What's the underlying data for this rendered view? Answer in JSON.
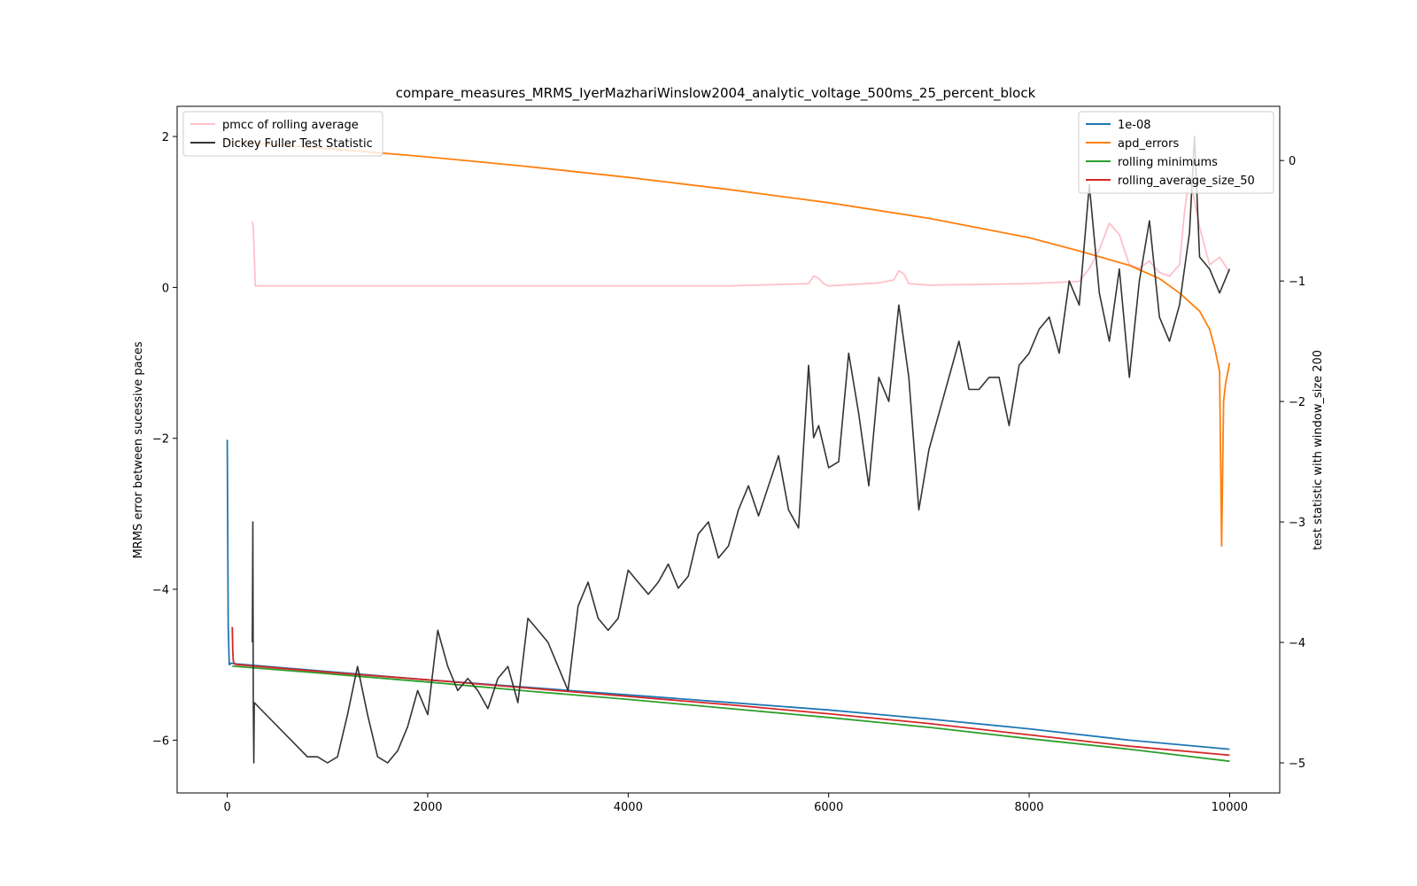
{
  "chart_data": {
    "type": "line",
    "title": "compare_measures_MRMS_IyerMazhariWinslow2004_analytic_voltage_500ms_25_percent_block",
    "xlabel": "",
    "ylabel": "MRMS error between sucessive paces",
    "y2label": "test statistic with window_size 200",
    "xlim": [
      -500,
      10500
    ],
    "ylim": [
      -6.7,
      2.4
    ],
    "y2lim": [
      -5.25,
      0.45
    ],
    "x_ticks": [
      0,
      2000,
      4000,
      6000,
      8000,
      10000
    ],
    "x_tick_labels": [
      "0",
      "2000",
      "4000",
      "6000",
      "8000",
      "10000"
    ],
    "y_ticks": [
      -6,
      -4,
      -2,
      0,
      2
    ],
    "y_tick_labels": [
      "−6",
      "−4",
      "−2",
      "0",
      "2"
    ],
    "y2_ticks": [
      -5,
      -4,
      -3,
      -2,
      -1,
      0
    ],
    "y2_tick_labels": [
      "−5",
      "−4",
      "−3",
      "−2",
      "−1",
      "0"
    ],
    "grid": false,
    "legend_left": {
      "placement": "upper-left",
      "entries": [
        {
          "label": "pmcc of rolling average",
          "color": "#ffc0cb"
        },
        {
          "label": "Dickey Fuller Test Statistic",
          "color": "#333333"
        }
      ]
    },
    "legend_right": {
      "placement": "upper-right",
      "entries": [
        {
          "label": "1e-08",
          "color": "#1f77b4"
        },
        {
          "label": "apd_errors",
          "color": "#ff7f0e"
        },
        {
          "label": "rolling minimums",
          "color": "#2ca02c"
        },
        {
          "label": "rolling_average_size_50",
          "color": "#d62728"
        }
      ]
    },
    "series": [
      {
        "name": "1e-08",
        "axis": "left",
        "color": "#1f77b4",
        "x": [
          0,
          10,
          20,
          40,
          100,
          1000,
          2000,
          3000,
          4000,
          5000,
          6000,
          7000,
          8000,
          9000,
          10000
        ],
        "y": [
          -2.02,
          -4.5,
          -5.0,
          -4.98,
          -4.99,
          -5.09,
          -5.2,
          -5.3,
          -5.4,
          -5.5,
          -5.6,
          -5.72,
          -5.85,
          -6.0,
          -6.12
        ]
      },
      {
        "name": "apd_errors",
        "axis": "right",
        "color": "#ff7f0e",
        "x": [
          0,
          1000,
          2000,
          3000,
          4000,
          5000,
          6000,
          7000,
          8000,
          8500,
          9000,
          9300,
          9500,
          9700,
          9800,
          9850,
          9900,
          9920,
          9940,
          9960,
          10000
        ],
        "y": [
          0.16,
          0.1,
          0.03,
          -0.05,
          -0.14,
          -0.24,
          -0.35,
          -0.48,
          -0.64,
          -0.75,
          -0.87,
          -0.98,
          -1.1,
          -1.25,
          -1.4,
          -1.55,
          -1.75,
          -3.2,
          -2.0,
          -1.85,
          -1.68
        ]
      },
      {
        "name": "rolling minimums",
        "axis": "left",
        "color": "#2ca02c",
        "x": [
          50,
          1000,
          2000,
          3000,
          4000,
          5000,
          6000,
          7000,
          8000,
          9000,
          10000
        ],
        "y": [
          -5.02,
          -5.12,
          -5.23,
          -5.35,
          -5.46,
          -5.58,
          -5.7,
          -5.83,
          -5.98,
          -6.12,
          -6.28
        ]
      },
      {
        "name": "rolling_average_size_50",
        "axis": "left",
        "color": "#d62728",
        "x": [
          50,
          55,
          60,
          70,
          100,
          1000,
          2000,
          3000,
          4000,
          5000,
          6000,
          7000,
          8000,
          9000,
          10000
        ],
        "y": [
          -4.5,
          -4.8,
          -4.95,
          -4.99,
          -5.0,
          -5.1,
          -5.2,
          -5.31,
          -5.42,
          -5.53,
          -5.65,
          -5.78,
          -5.93,
          -6.08,
          -6.2
        ]
      },
      {
        "name": "pmcc of rolling average",
        "axis": "left",
        "color": "#ffc0cb",
        "x": [
          250,
          260,
          280,
          1000,
          2000,
          3000,
          4000,
          5000,
          5800,
          5850,
          5900,
          5950,
          6000,
          6500,
          6650,
          6700,
          6750,
          6800,
          7000,
          7500,
          8000,
          8500,
          8600,
          8700,
          8800,
          8900,
          9000,
          9100,
          9200,
          9300,
          9400,
          9500,
          9550,
          9600,
          9700,
          9800,
          9900,
          10000
        ],
        "y": [
          0.87,
          0.8,
          0.02,
          0.02,
          0.02,
          0.02,
          0.02,
          0.02,
          0.05,
          0.15,
          0.12,
          0.05,
          0.02,
          0.06,
          0.1,
          0.22,
          0.18,
          0.05,
          0.03,
          0.04,
          0.05,
          0.08,
          0.25,
          0.5,
          0.85,
          0.7,
          0.3,
          0.25,
          0.35,
          0.2,
          0.15,
          0.3,
          1.0,
          1.5,
          0.8,
          0.3,
          0.4,
          0.2
        ]
      },
      {
        "name": "Dickey Fuller Test Statistic",
        "axis": "right",
        "color": "#333333",
        "x": [
          250,
          255,
          260,
          265,
          270,
          800,
          900,
          1000,
          1100,
          1200,
          1300,
          1400,
          1500,
          1600,
          1700,
          1800,
          1900,
          2000,
          2100,
          2200,
          2300,
          2400,
          2500,
          2600,
          2700,
          2800,
          2900,
          3000,
          3100,
          3200,
          3300,
          3400,
          3500,
          3600,
          3700,
          3800,
          3900,
          4000,
          4100,
          4200,
          4300,
          4400,
          4500,
          4600,
          4700,
          4800,
          4900,
          5000,
          5100,
          5200,
          5300,
          5400,
          5500,
          5600,
          5700,
          5800,
          5850,
          5900,
          6000,
          6100,
          6200,
          6300,
          6400,
          6500,
          6600,
          6700,
          6800,
          6900,
          7000,
          7100,
          7200,
          7300,
          7400,
          7500,
          7600,
          7700,
          7800,
          7900,
          8000,
          8100,
          8200,
          8300,
          8400,
          8500,
          8600,
          8700,
          8800,
          8900,
          9000,
          9100,
          9200,
          9300,
          9400,
          9500,
          9600,
          9650,
          9700,
          9800,
          9900,
          10000
        ],
        "y": [
          -4.0,
          -3.0,
          -4.5,
          -5.0,
          -4.5,
          -4.95,
          -4.95,
          -5.0,
          -4.95,
          -4.6,
          -4.2,
          -4.6,
          -4.95,
          -5.0,
          -4.9,
          -4.7,
          -4.4,
          -4.6,
          -3.9,
          -4.2,
          -4.4,
          -4.3,
          -4.4,
          -4.55,
          -4.3,
          -4.2,
          -4.5,
          -3.8,
          -3.9,
          -4.0,
          -4.2,
          -4.4,
          -3.7,
          -3.5,
          -3.8,
          -3.9,
          -3.8,
          -3.4,
          -3.5,
          -3.6,
          -3.5,
          -3.35,
          -3.55,
          -3.45,
          -3.1,
          -3.0,
          -3.3,
          -3.2,
          -2.9,
          -2.7,
          -2.95,
          -2.7,
          -2.45,
          -2.9,
          -3.05,
          -1.7,
          -2.3,
          -2.2,
          -2.55,
          -2.5,
          -1.6,
          -2.1,
          -2.7,
          -1.8,
          -2.0,
          -1.2,
          -1.8,
          -2.9,
          -2.4,
          -2.1,
          -1.8,
          -1.5,
          -1.9,
          -1.9,
          -1.8,
          -1.8,
          -2.2,
          -1.7,
          -1.6,
          -1.4,
          -1.3,
          -1.6,
          -1.0,
          -1.2,
          -0.2,
          -1.1,
          -1.5,
          -0.9,
          -1.8,
          -1.0,
          -0.5,
          -1.3,
          -1.5,
          -1.2,
          -0.6,
          0.2,
          -0.8,
          -0.9,
          -1.1,
          -0.9
        ]
      }
    ]
  }
}
